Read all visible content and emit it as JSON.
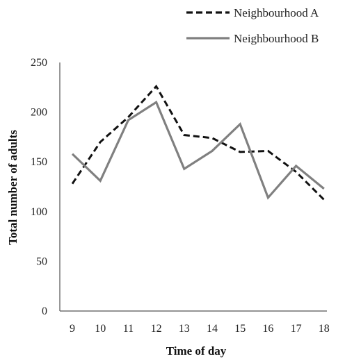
{
  "chart_data": {
    "type": "line",
    "xlabel": "Time of day",
    "ylabel": "Total  number  of adults",
    "x": [
      "9",
      "10",
      "11",
      "12",
      "13",
      "14",
      "15",
      "16",
      "17",
      "18"
    ],
    "ylim": [
      0,
      250
    ],
    "yticks": [
      "0",
      "50",
      "100",
      "150",
      "200",
      "250"
    ],
    "grid": false,
    "legend_position": "top-right",
    "series": [
      {
        "name": "Neighbourhood A",
        "values": [
          128,
          170,
          195,
          226,
          177,
          174,
          160,
          161,
          140,
          112
        ],
        "color": "#111111",
        "style": "dashed"
      },
      {
        "name": "Neighbourhood B",
        "values": [
          158,
          131,
          192,
          210,
          143,
          161,
          188,
          114,
          146,
          123
        ],
        "color": "#808080",
        "style": "solid"
      }
    ]
  }
}
